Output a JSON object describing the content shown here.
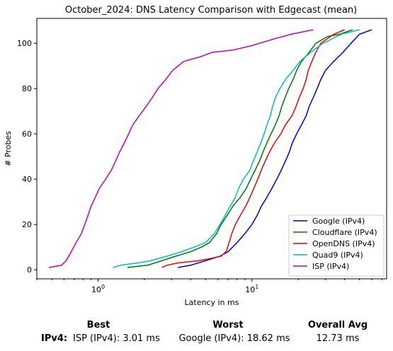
{
  "chart_data": {
    "type": "line",
    "title": "October_2024: DNS Latency Comparison with Edgecast (mean)",
    "xlabel": "Latency in ms",
    "ylabel": "# Probes",
    "xscale": "log",
    "xlim": [
      0.4,
      75
    ],
    "ylim": [
      -4,
      111
    ],
    "x_ticks": [
      {
        "value": 1,
        "label": "10^0"
      },
      {
        "value": 10,
        "label": "10^1"
      }
    ],
    "y_ticks": [
      0,
      20,
      40,
      60,
      80,
      100
    ],
    "grid": false,
    "legend_position": "lower-right",
    "series": [
      {
        "name": "Google (IPv4)",
        "color": "#0000cc",
        "points": [
          [
            3.3,
            1
          ],
          [
            4,
            2
          ],
          [
            5,
            4
          ],
          [
            6.2,
            6
          ],
          [
            7,
            8
          ],
          [
            8,
            12
          ],
          [
            9,
            16
          ],
          [
            10,
            20
          ],
          [
            10.8,
            24
          ],
          [
            11.5,
            28
          ],
          [
            12.5,
            32
          ],
          [
            13.5,
            36
          ],
          [
            14.5,
            40
          ],
          [
            15.5,
            44
          ],
          [
            16.5,
            48
          ],
          [
            17.5,
            52
          ],
          [
            18.3,
            56
          ],
          [
            19.5,
            60
          ],
          [
            21,
            64
          ],
          [
            22.5,
            68
          ],
          [
            23.5,
            72
          ],
          [
            25,
            76
          ],
          [
            26.5,
            80
          ],
          [
            28,
            84
          ],
          [
            30,
            88
          ],
          [
            34,
            92
          ],
          [
            39,
            96
          ],
          [
            44,
            100
          ],
          [
            50,
            104
          ],
          [
            60,
            106
          ]
        ]
      },
      {
        "name": "Cloudflare (IPv4)",
        "color": "#007700",
        "points": [
          [
            1.55,
            1
          ],
          [
            2.1,
            2
          ],
          [
            2.6,
            4
          ],
          [
            3.2,
            6
          ],
          [
            4,
            8
          ],
          [
            4.7,
            10
          ],
          [
            5.3,
            12
          ],
          [
            5.9,
            16
          ],
          [
            6.3,
            20
          ],
          [
            6.9,
            24
          ],
          [
            7.5,
            28
          ],
          [
            8.4,
            32
          ],
          [
            9.2,
            36
          ],
          [
            9.8,
            40
          ],
          [
            10.5,
            44
          ],
          [
            11.2,
            48
          ],
          [
            11.8,
            52
          ],
          [
            12.5,
            56
          ],
          [
            13.3,
            60
          ],
          [
            14.2,
            64
          ],
          [
            15,
            68
          ],
          [
            15.6,
            72
          ],
          [
            16.4,
            76
          ],
          [
            17.3,
            80
          ],
          [
            18.5,
            84
          ],
          [
            19.5,
            88
          ],
          [
            21,
            92
          ],
          [
            23.5,
            96
          ],
          [
            26,
            100
          ],
          [
            31,
            103
          ],
          [
            37,
            104
          ],
          [
            45,
            106
          ]
        ]
      },
      {
        "name": "OpenDNS (IPv4)",
        "color": "#ee0000",
        "points": [
          [
            2.6,
            1
          ],
          [
            2.8,
            2
          ],
          [
            3.3,
            3
          ],
          [
            4.5,
            4
          ],
          [
            5.4,
            5
          ],
          [
            6.3,
            6
          ],
          [
            6.8,
            8
          ],
          [
            7.1,
            12
          ],
          [
            7.4,
            16
          ],
          [
            7.8,
            20
          ],
          [
            8.4,
            24
          ],
          [
            9.1,
            28
          ],
          [
            9.7,
            32
          ],
          [
            10.3,
            36
          ],
          [
            10.9,
            40
          ],
          [
            11.5,
            44
          ],
          [
            12.2,
            48
          ],
          [
            13,
            52
          ],
          [
            14,
            56
          ],
          [
            15.4,
            60
          ],
          [
            16.5,
            64
          ],
          [
            18.2,
            68
          ],
          [
            19.3,
            72
          ],
          [
            20.3,
            76
          ],
          [
            21.5,
            80
          ],
          [
            22.5,
            84
          ],
          [
            23.2,
            88
          ],
          [
            24.5,
            92
          ],
          [
            26,
            96
          ],
          [
            28,
            100
          ],
          [
            34,
            104
          ],
          [
            40,
            106
          ]
        ]
      },
      {
        "name": "Quad9 (IPv4)",
        "color": "#00bbbb",
        "points": [
          [
            1.25,
            1
          ],
          [
            1.4,
            2
          ],
          [
            1.8,
            3
          ],
          [
            2.2,
            4
          ],
          [
            2.8,
            6
          ],
          [
            3.5,
            8
          ],
          [
            4.2,
            10
          ],
          [
            5,
            12
          ],
          [
            5.7,
            16
          ],
          [
            6.2,
            20
          ],
          [
            6.7,
            24
          ],
          [
            7.2,
            28
          ],
          [
            7.8,
            32
          ],
          [
            8.2,
            36
          ],
          [
            8.8,
            40
          ],
          [
            9.7,
            44
          ],
          [
            10.2,
            48
          ],
          [
            10.8,
            52
          ],
          [
            11.4,
            56
          ],
          [
            12,
            60
          ],
          [
            12.5,
            64
          ],
          [
            13.2,
            68
          ],
          [
            13.6,
            72
          ],
          [
            14.2,
            76
          ],
          [
            15.2,
            80
          ],
          [
            16.5,
            84
          ],
          [
            18.5,
            88
          ],
          [
            20.5,
            92
          ],
          [
            24,
            96
          ],
          [
            29,
            100
          ],
          [
            38,
            104
          ],
          [
            50,
            106
          ]
        ]
      },
      {
        "name": "ISP (IPv4)",
        "color": "#bb00bb",
        "points": [
          [
            0.48,
            1
          ],
          [
            0.58,
            2
          ],
          [
            0.62,
            4
          ],
          [
            0.67,
            8
          ],
          [
            0.72,
            12
          ],
          [
            0.78,
            16
          ],
          [
            0.82,
            20
          ],
          [
            0.86,
            24
          ],
          [
            0.9,
            28
          ],
          [
            0.96,
            32
          ],
          [
            1.02,
            36
          ],
          [
            1.12,
            40
          ],
          [
            1.22,
            44
          ],
          [
            1.3,
            48
          ],
          [
            1.38,
            52
          ],
          [
            1.48,
            56
          ],
          [
            1.58,
            60
          ],
          [
            1.68,
            64
          ],
          [
            1.85,
            68
          ],
          [
            2.05,
            72
          ],
          [
            2.25,
            76
          ],
          [
            2.45,
            80
          ],
          [
            2.75,
            84
          ],
          [
            3.05,
            88
          ],
          [
            3.6,
            92
          ],
          [
            4.6,
            94
          ],
          [
            5.5,
            96
          ],
          [
            7.5,
            97
          ],
          [
            10,
            99
          ],
          [
            14,
            102
          ],
          [
            18,
            104
          ],
          [
            25,
            106
          ]
        ]
      }
    ]
  },
  "summary": {
    "best_header": "Best",
    "worst_header": "Worst",
    "avg_header": "Overall Avg",
    "row_label": "IPv4",
    "row_separator": ":",
    "best_value": "ISP (IPv4): 3.01 ms",
    "worst_value": "Google (IPv4): 18.62 ms",
    "avg_value": "12.73 ms"
  }
}
